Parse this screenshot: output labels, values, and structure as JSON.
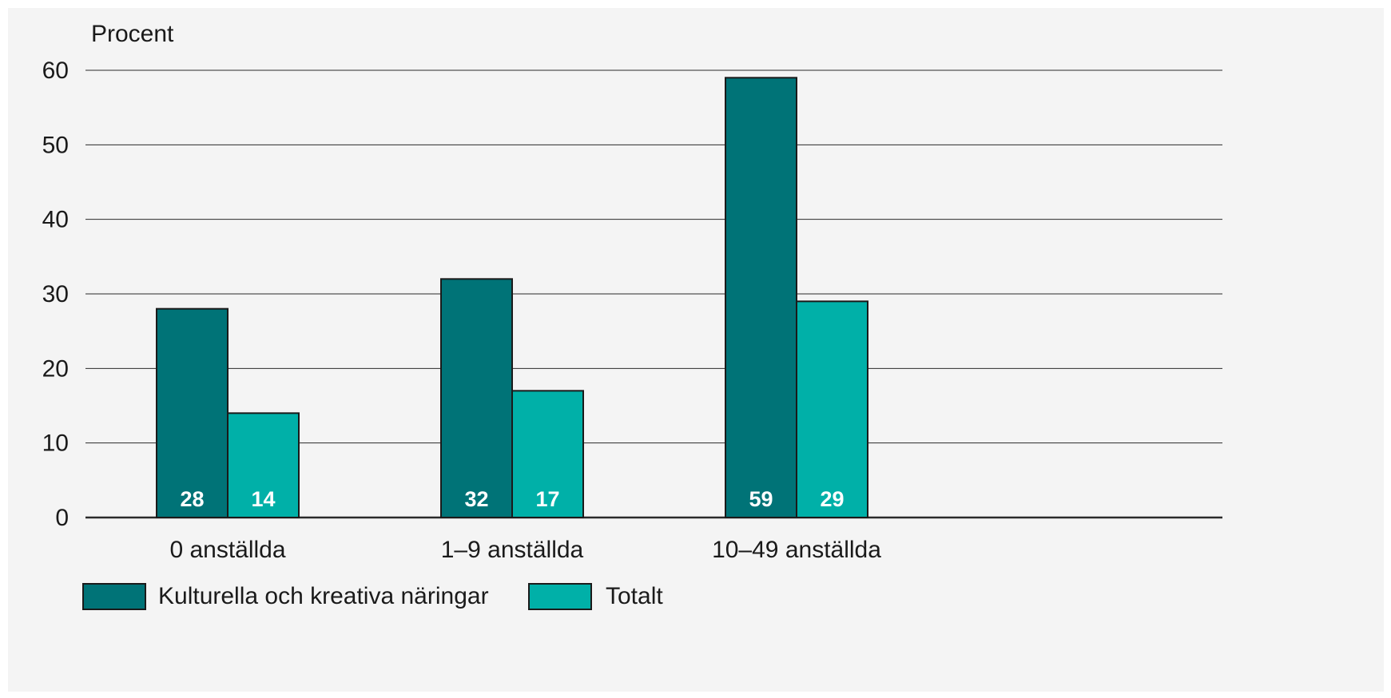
{
  "chart_data": {
    "type": "bar",
    "ylabel": "Procent",
    "xlabel": "",
    "ylim": [
      0,
      60
    ],
    "yticks": [
      0,
      10,
      20,
      30,
      40,
      50,
      60
    ],
    "grid": true,
    "legend_position": "bottom-left",
    "categories": [
      "0 anställda",
      "1–9 anställda",
      "10–49 anställda"
    ],
    "series": [
      {
        "name": "Kulturella och kreativa näringar",
        "color": "#007377",
        "values": [
          28,
          32,
          59
        ]
      },
      {
        "name": "Totalt",
        "color": "#00b0a8",
        "values": [
          14,
          17,
          29
        ]
      }
    ]
  }
}
